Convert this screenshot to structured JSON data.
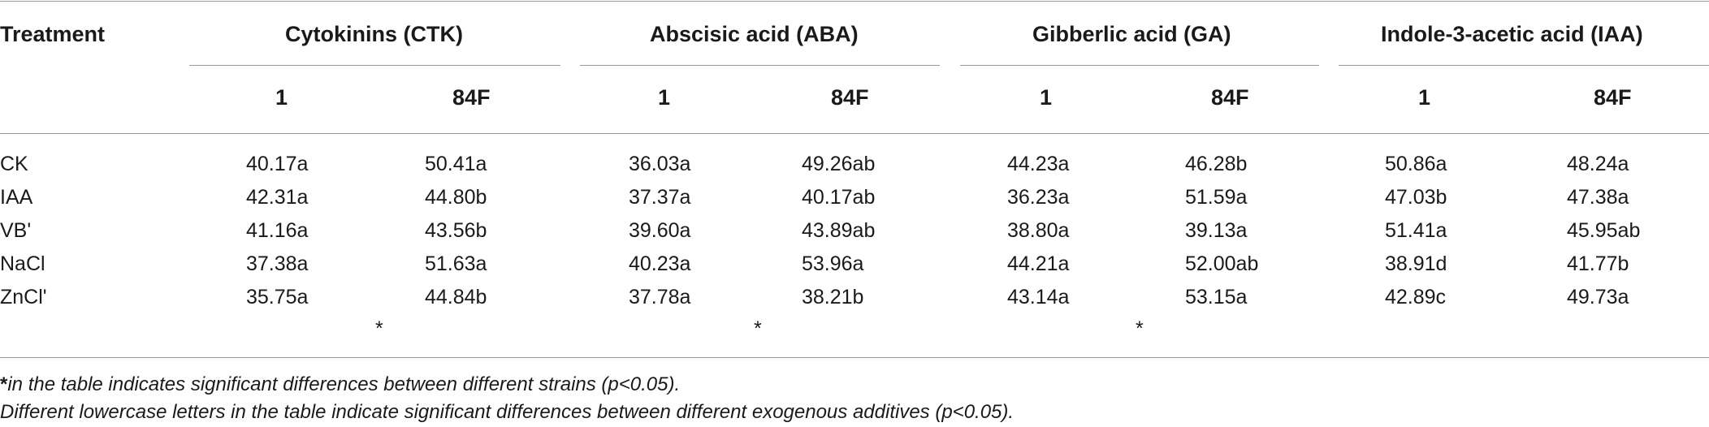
{
  "table": {
    "header": {
      "treatment": "Treatment",
      "groups": [
        "Cytokinins (CTK)",
        "Abscisic acid (ABA)",
        "Gibberlic acid (GA)",
        "Indole-3-acetic acid (IAA)"
      ],
      "sub": [
        "1",
        "84F",
        "1",
        "84F",
        "1",
        "84F",
        "1",
        "84F"
      ]
    },
    "rows": [
      {
        "label": "CK",
        "values": [
          "40.17a",
          "50.41a",
          "36.03a",
          "49.26ab",
          "44.23a",
          "46.28b",
          "50.86a",
          "48.24a"
        ]
      },
      {
        "label": "IAA",
        "values": [
          "42.31a",
          "44.80b",
          "37.37a",
          "40.17ab",
          "36.23a",
          "51.59a",
          "47.03b",
          "47.38a"
        ]
      },
      {
        "label": "VB'",
        "values": [
          "41.16a",
          "43.56b",
          "39.60a",
          "43.89ab",
          "38.80a",
          "39.13a",
          "51.41a",
          "45.95ab"
        ]
      },
      {
        "label": "NaCl",
        "values": [
          "37.38a",
          "51.63a",
          "40.23a",
          "53.96a",
          "44.21a",
          "52.00ab",
          "38.91d",
          "41.77b"
        ]
      },
      {
        "label": "ZnCl'",
        "values": [
          "35.75a",
          "44.84b",
          "37.78a",
          "38.21b",
          "43.14a",
          "53.15a",
          "42.89c",
          "49.73a"
        ]
      }
    ],
    "significance_marks": [
      "*",
      "*",
      "*"
    ]
  },
  "footnotes": {
    "asterisk_symbol": "*",
    "asterisk_text": "in the table indicates significant differences between different strains (p<0.05).",
    "letters_text": "Different lowercase letters in the table indicate significant differences between different exogenous additives (p<0.05)."
  }
}
